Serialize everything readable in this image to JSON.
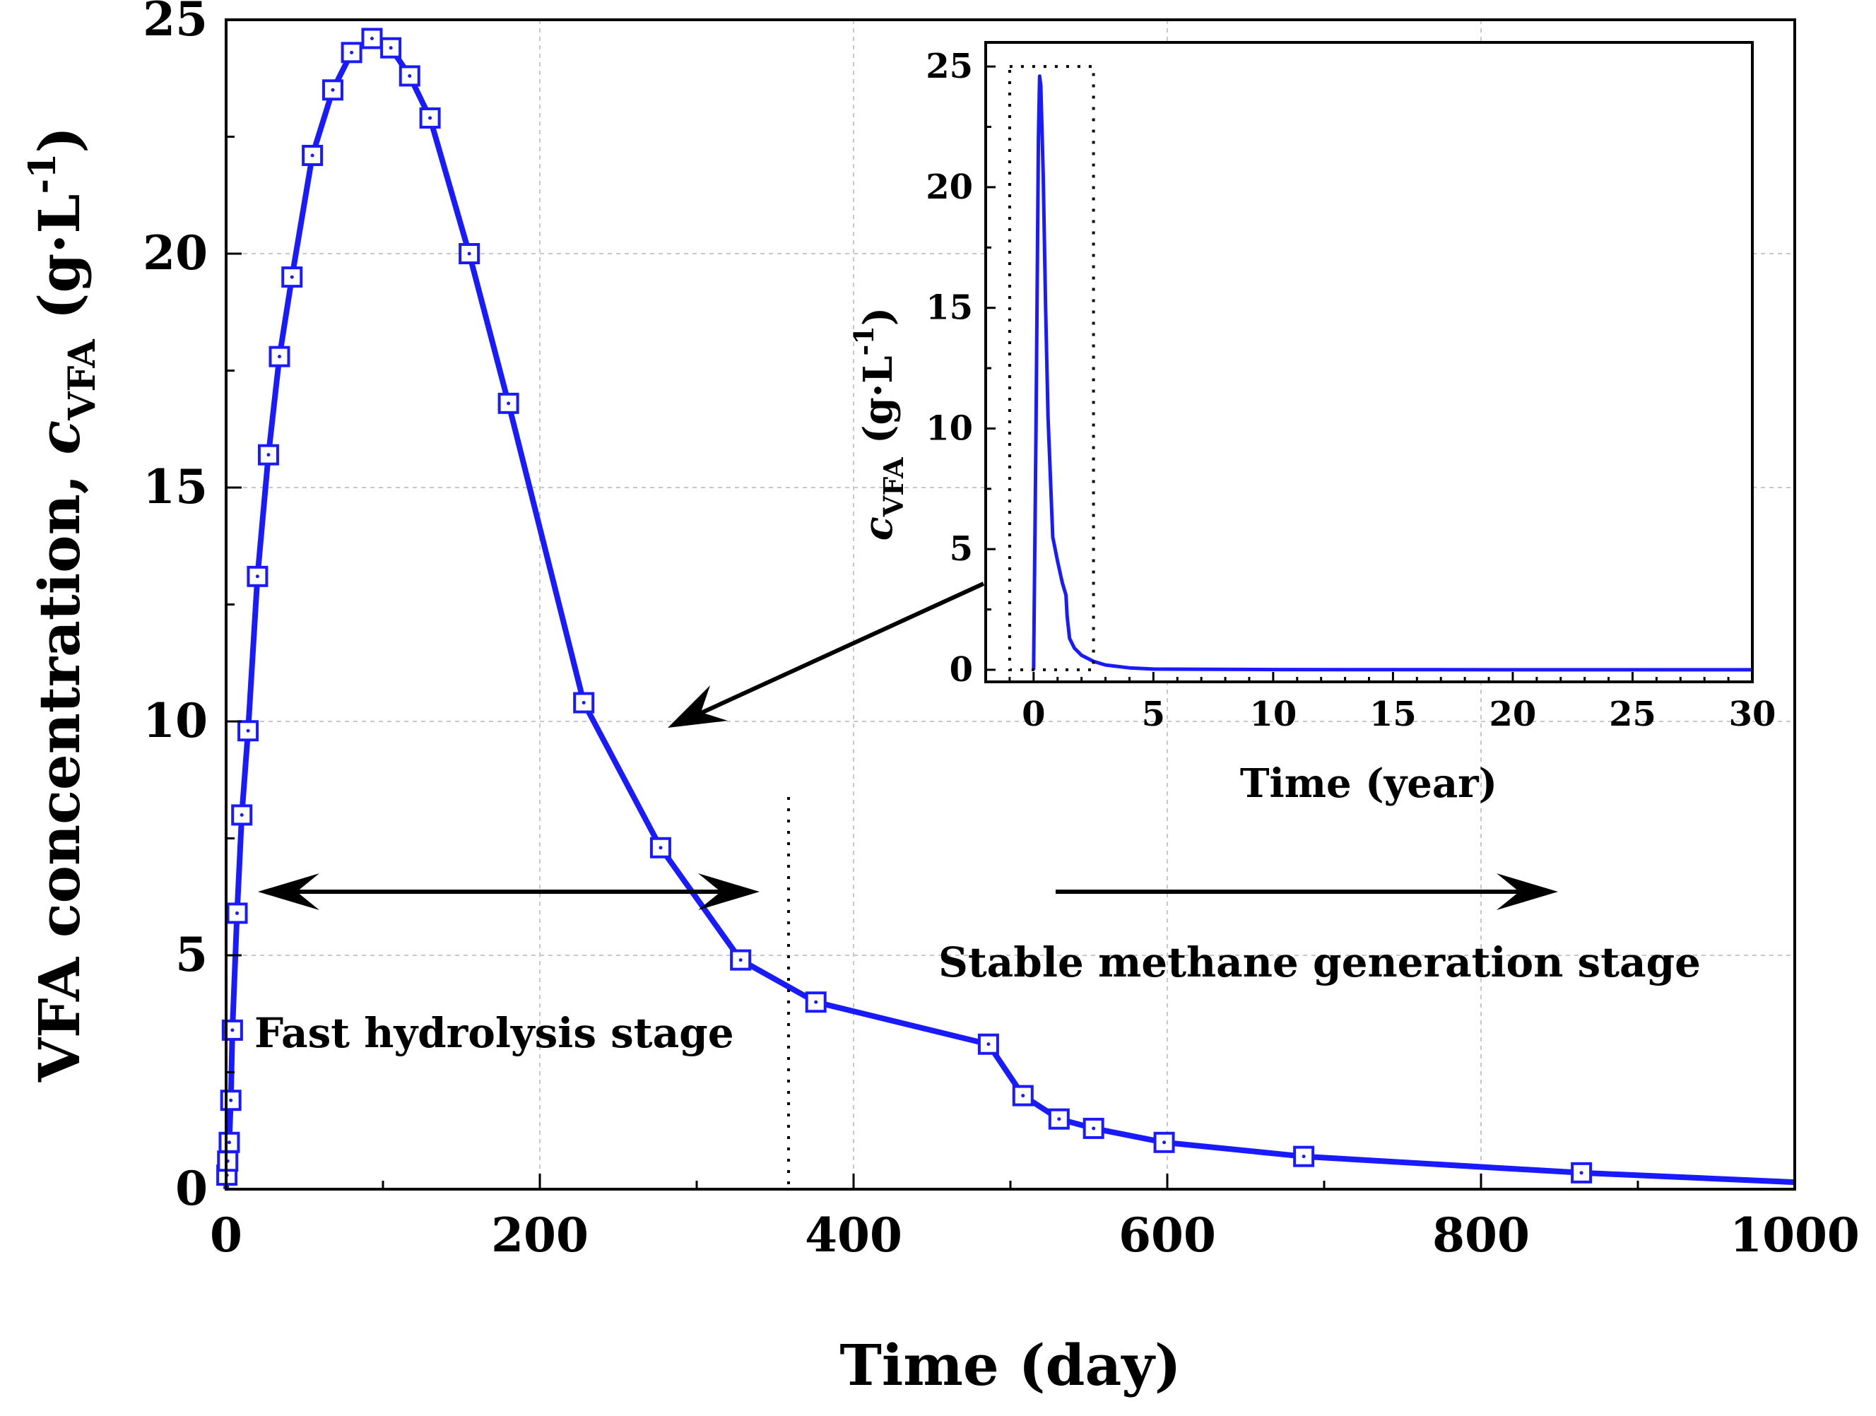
{
  "chart_data": [
    {
      "type": "line",
      "xlabel": "Time (day)",
      "ylabel": "VFA concentration, ",
      "ylabel_var": "c",
      "ylabel_sub": "VFA",
      "ylabel_unit": " (g·L",
      "ylabel_sup": "-1",
      "ylabel_end": ")",
      "xlim": [
        0,
        1000
      ],
      "ylim": [
        0,
        25
      ],
      "xticks": [
        "0",
        "200",
        "400",
        "600",
        "800",
        "1000"
      ],
      "yticks": [
        "0",
        "5",
        "10",
        "15",
        "20",
        "25"
      ],
      "grid": true,
      "series": [
        {
          "name": "VFA concentration",
          "color": "#1a1aff",
          "marker": "square-with-dot",
          "x": [
            0.5,
            1,
            2,
            3,
            4,
            7,
            10,
            14,
            20,
            27,
            34,
            42,
            55,
            68,
            80,
            93,
            105,
            117,
            130,
            155,
            180,
            228,
            277,
            328,
            376,
            486,
            508,
            531,
            553,
            598,
            687,
            864
          ],
          "y": [
            0.3,
            0.6,
            1.0,
            1.9,
            3.4,
            5.9,
            8.0,
            9.8,
            13.1,
            15.7,
            17.8,
            19.5,
            22.1,
            23.5,
            24.3,
            24.6,
            24.4,
            23.8,
            22.9,
            20.0,
            16.8,
            10.4,
            7.3,
            4.9,
            4.0,
            3.1,
            2.0,
            1.5,
            1.3,
            1.0,
            0.7,
            0.35
          ],
          "tail": [
            [
              1000,
              0.15
            ]
          ]
        }
      ],
      "annotations": [
        {
          "text": "Fast hydrolysis stage"
        },
        {
          "text": "Stable methane generation stage"
        }
      ],
      "stage_boundary_day": 360
    },
    {
      "type": "line",
      "role": "inset",
      "xlabel": "Time (year)",
      "ylabel_var": "c",
      "ylabel_sub": "VFA",
      "ylabel_unit": " (g·L",
      "ylabel_sup": "-1",
      "ylabel_end": ")",
      "xlim": [
        -2,
        30
      ],
      "ylim": [
        -0.5,
        26
      ],
      "xticks": [
        "0",
        "5",
        "10",
        "15",
        "20",
        "25",
        "30"
      ],
      "yticks": [
        "0",
        "5",
        "10",
        "15",
        "20",
        "25"
      ],
      "zoom_box": {
        "x": [
          -1,
          2.5
        ],
        "y": [
          0,
          25
        ]
      },
      "series": [
        {
          "name": "VFA concentration",
          "color": "#1a1aff",
          "x": [
            0,
            0.1,
            0.2,
            0.25,
            0.3,
            0.4,
            0.5,
            0.6,
            0.8,
            1.0,
            1.2,
            1.35,
            1.4,
            1.5,
            1.7,
            2.0,
            2.5,
            3.0,
            4.0,
            5.0,
            10,
            20,
            30
          ],
          "y": [
            0,
            10,
            22,
            24.6,
            24.2,
            20.5,
            15,
            10.5,
            5.5,
            4.5,
            3.6,
            3.1,
            2.2,
            1.3,
            0.9,
            0.6,
            0.35,
            0.2,
            0.08,
            0.03,
            0.01,
            0,
            0
          ]
        }
      ]
    }
  ]
}
